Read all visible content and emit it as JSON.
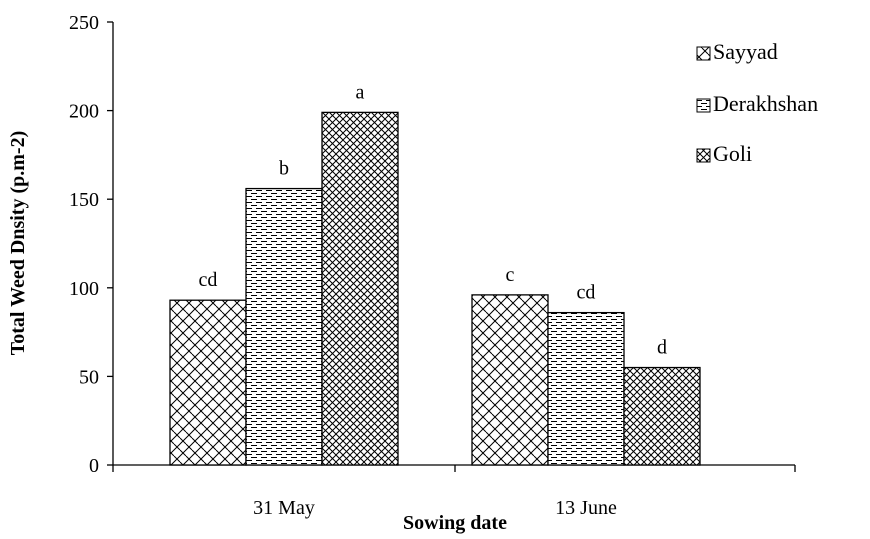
{
  "chart_data": {
    "type": "bar",
    "categories": [
      "31 May",
      "13 June"
    ],
    "series": [
      {
        "name": "Sayyad",
        "values": [
          93,
          96
        ],
        "labels": [
          "cd",
          "c"
        ],
        "pattern": "brick"
      },
      {
        "name": "Derakhshan",
        "values": [
          156,
          86
        ],
        "labels": [
          "b",
          "cd"
        ],
        "pattern": "dashes"
      },
      {
        "name": "Goli",
        "values": [
          199,
          55
        ],
        "labels": [
          "a",
          "d"
        ],
        "pattern": "crosshatch"
      }
    ],
    "xlabel": "Sowing date",
    "ylabel": "Total Weed Dnsity (p.m-2)",
    "ylim": [
      0,
      250
    ],
    "yticks": [
      0,
      50,
      100,
      150,
      200,
      250
    ],
    "grid": false,
    "legend": "top-right"
  }
}
